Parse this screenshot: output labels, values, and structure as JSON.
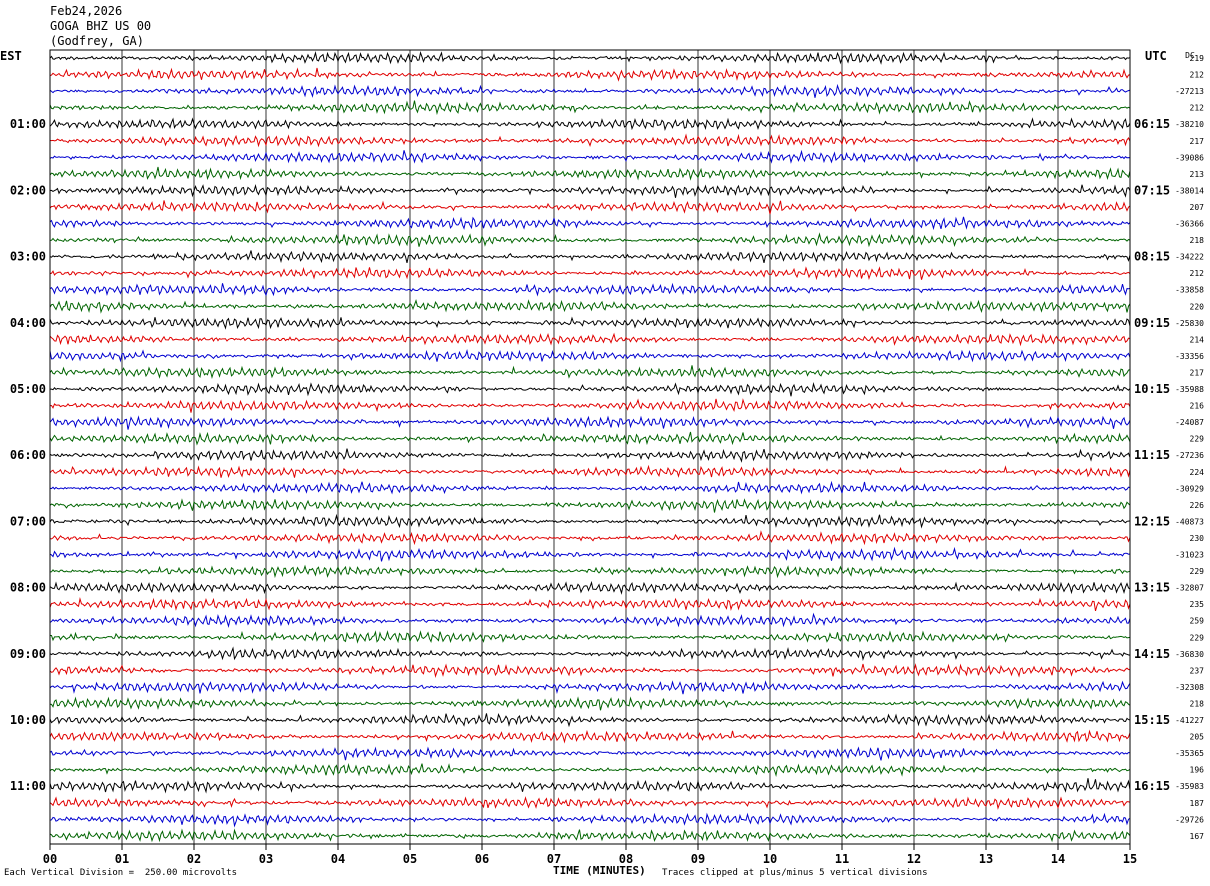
{
  "header": {
    "date": "Feb24,2026",
    "station": "GOGA BHZ US 00",
    "location": "(Godfrey, GA)"
  },
  "chart_data": {
    "type": "line",
    "left_timezone": "EST",
    "right_timezone": "UTC",
    "dc_label": "DC",
    "xlabel": "TIME (MINUTES)",
    "xlim": [
      0,
      15
    ],
    "x_ticks": [
      "00",
      "01",
      "02",
      "03",
      "04",
      "05",
      "06",
      "07",
      "08",
      "09",
      "10",
      "11",
      "12",
      "13",
      "14",
      "15"
    ],
    "left_hour_labels": [
      "01:00",
      "02:00",
      "03:00",
      "04:00",
      "05:00",
      "06:00",
      "07:00",
      "08:00",
      "09:00",
      "10:00",
      "11:00"
    ],
    "right_hour_labels": [
      "06:15",
      "07:15",
      "08:15",
      "09:15",
      "10:15",
      "11:15",
      "12:15",
      "13:15",
      "14:15",
      "15:15",
      "16:15"
    ],
    "trace_colors": [
      "#000000",
      "#e00000",
      "#0000d0",
      "#006400"
    ],
    "dc_values": [
      "219",
      "212",
      "-27213",
      "212",
      "-38210",
      "217",
      "-39086",
      "213",
      "-38014",
      "207",
      "-36366",
      "218",
      "-34222",
      "212",
      "-33858",
      "220",
      "-25830",
      "214",
      "-33356",
      "217",
      "-35988",
      "216",
      "-24087",
      "229",
      "-27236",
      "224",
      "-30929",
      "226",
      "-40873",
      "230",
      "-31023",
      "229",
      "-32807",
      "235",
      "259",
      "229",
      "-36830",
      "237",
      "-32308",
      "218",
      "-41227",
      "205",
      "-35365",
      "196",
      "-35983",
      "187",
      "-29726",
      "167"
    ],
    "scale_note": "Each Vertical Division =  250.00 microvolts",
    "clip_note": "Traces clipped at plus/minus 5 vertical divisions"
  }
}
